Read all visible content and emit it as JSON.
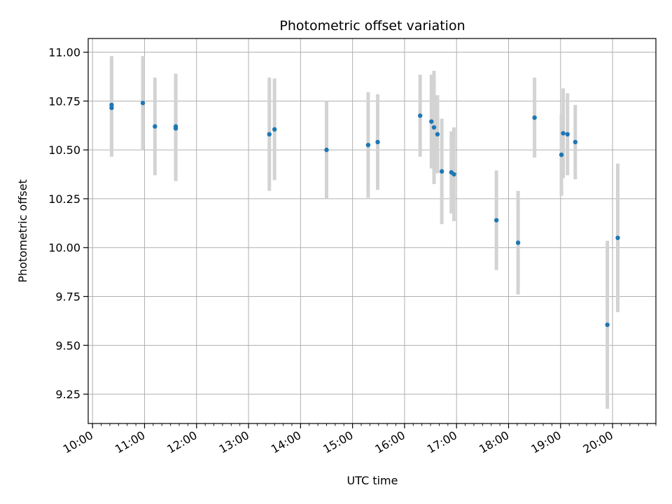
{
  "chart_data": {
    "type": "scatter",
    "title": "Photometric offset variation",
    "xlabel": "UTC time",
    "ylabel": "Photometric offset",
    "x_unit": "UTC time (HH:MM)",
    "xlim": [
      "09:55",
      "20:50"
    ],
    "ylim": [
      9.1,
      11.07
    ],
    "x_ticks": [
      "10:00",
      "11:00",
      "12:00",
      "13:00",
      "14:00",
      "15:00",
      "16:00",
      "17:00",
      "18:00",
      "19:00",
      "20:00"
    ],
    "y_ticks": [
      9.25,
      9.5,
      9.75,
      10.0,
      10.25,
      10.5,
      10.75,
      11.0
    ],
    "y_tick_labels": [
      "9.25",
      "9.50",
      "9.75",
      "10.00",
      "10.25",
      "10.50",
      "10.75",
      "11.00"
    ],
    "grid": true,
    "marker_color": "#1f77b4",
    "errorbar_color": "#d3d3d3",
    "points": [
      {
        "x": "10:22",
        "y": 10.73,
        "err": 0.25
      },
      {
        "x": "10:22",
        "y": 10.715,
        "err": 0.25
      },
      {
        "x": "10:58",
        "y": 10.74,
        "err": 0.24
      },
      {
        "x": "11:12",
        "y": 10.62,
        "err": 0.25
      },
      {
        "x": "11:36",
        "y": 10.62,
        "err": 0.27
      },
      {
        "x": "11:36",
        "y": 10.61,
        "err": 0.27
      },
      {
        "x": "13:24",
        "y": 10.58,
        "err": 0.29
      },
      {
        "x": "13:30",
        "y": 10.605,
        "err": 0.26
      },
      {
        "x": "14:30",
        "y": 10.5,
        "err": 0.25
      },
      {
        "x": "15:18",
        "y": 10.525,
        "err": 0.27
      },
      {
        "x": "15:29",
        "y": 10.54,
        "err": 0.245
      },
      {
        "x": "16:18",
        "y": 10.675,
        "err": 0.21
      },
      {
        "x": "16:31",
        "y": 10.645,
        "err": 0.24
      },
      {
        "x": "16:34",
        "y": 10.615,
        "err": 0.29
      },
      {
        "x": "16:38",
        "y": 10.58,
        "err": 0.2
      },
      {
        "x": "16:43",
        "y": 10.39,
        "err": 0.27
      },
      {
        "x": "16:54",
        "y": 10.385,
        "err": 0.21
      },
      {
        "x": "16:57",
        "y": 10.375,
        "err": 0.24
      },
      {
        "x": "17:46",
        "y": 10.14,
        "err": 0.255
      },
      {
        "x": "18:11",
        "y": 10.025,
        "err": 0.265
      },
      {
        "x": "18:30",
        "y": 10.665,
        "err": 0.205
      },
      {
        "x": "19:01",
        "y": 10.475,
        "err": 0.21
      },
      {
        "x": "19:03",
        "y": 10.585,
        "err": 0.23
      },
      {
        "x": "19:08",
        "y": 10.58,
        "err": 0.21
      },
      {
        "x": "19:17",
        "y": 10.54,
        "err": 0.19
      },
      {
        "x": "19:54",
        "y": 9.605,
        "err": 0.43
      },
      {
        "x": "20:06",
        "y": 10.05,
        "err": 0.38
      }
    ]
  }
}
